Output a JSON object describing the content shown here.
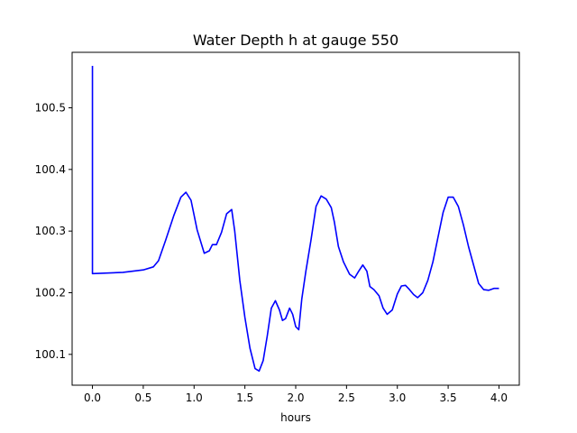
{
  "chart_data": {
    "type": "line",
    "title": "Water Depth h at gauge 550",
    "xlabel": "hours",
    "ylabel": "",
    "xlim": [
      -0.2,
      4.2
    ],
    "ylim": [
      100.05,
      100.59
    ],
    "xticks": [
      0.0,
      0.5,
      1.0,
      1.5,
      2.0,
      2.5,
      3.0,
      3.5,
      4.0
    ],
    "xtick_labels": [
      "0.0",
      "0.5",
      "1.0",
      "1.5",
      "2.0",
      "2.5",
      "3.0",
      "3.5",
      "4.0"
    ],
    "yticks": [
      100.1,
      100.2,
      100.3,
      100.4,
      100.5
    ],
    "ytick_labels": [
      "100.1",
      "100.2",
      "100.3",
      "100.4",
      "100.5"
    ],
    "grid": false,
    "series": [
      {
        "color": "#0000ff",
        "x": [
          0.0,
          0.0,
          0.005,
          0.3,
          0.5,
          0.6,
          0.65,
          0.72,
          0.8,
          0.87,
          0.92,
          0.97,
          1.03,
          1.1,
          1.15,
          1.18,
          1.22,
          1.27,
          1.32,
          1.37,
          1.4,
          1.45,
          1.5,
          1.55,
          1.6,
          1.64,
          1.68,
          1.72,
          1.76,
          1.8,
          1.84,
          1.87,
          1.9,
          1.94,
          1.97,
          2.0,
          2.03,
          2.06,
          2.1,
          2.15,
          2.2,
          2.25,
          2.3,
          2.35,
          2.38,
          2.42,
          2.47,
          2.53,
          2.58,
          2.62,
          2.66,
          2.7,
          2.73,
          2.77,
          2.82,
          2.86,
          2.9,
          2.95,
          3.0,
          3.04,
          3.08,
          3.12,
          3.16,
          3.2,
          3.25,
          3.3,
          3.35,
          3.4,
          3.45,
          3.5,
          3.55,
          3.6,
          3.65,
          3.7,
          3.75,
          3.8,
          3.85,
          3.9,
          3.95,
          4.0
        ],
        "y": [
          100.568,
          100.231,
          100.231,
          100.233,
          100.237,
          100.242,
          100.252,
          100.285,
          100.325,
          100.355,
          100.363,
          100.35,
          100.302,
          100.264,
          100.268,
          100.278,
          100.278,
          100.298,
          100.328,
          100.335,
          100.3,
          100.22,
          100.16,
          100.11,
          100.077,
          100.073,
          100.09,
          100.13,
          100.175,
          100.187,
          100.172,
          100.155,
          100.158,
          100.175,
          100.165,
          100.145,
          100.14,
          100.19,
          100.235,
          100.285,
          100.34,
          100.357,
          100.352,
          100.338,
          100.315,
          100.275,
          100.25,
          100.23,
          100.224,
          100.235,
          100.245,
          100.235,
          100.21,
          100.205,
          100.195,
          100.175,
          100.165,
          100.172,
          100.198,
          100.211,
          100.212,
          100.205,
          100.197,
          100.192,
          100.2,
          100.22,
          100.25,
          100.29,
          100.33,
          100.355,
          100.355,
          100.34,
          100.31,
          100.275,
          100.245,
          100.215,
          100.205,
          100.204,
          100.207,
          100.207
        ]
      }
    ]
  }
}
